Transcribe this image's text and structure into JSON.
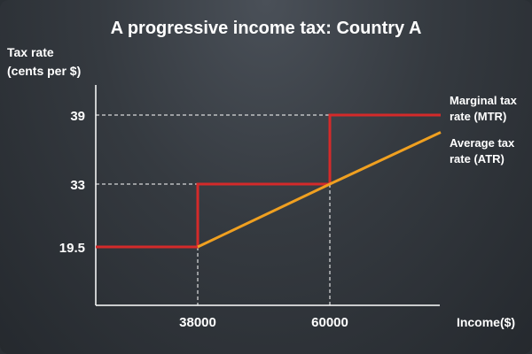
{
  "chart_data": {
    "type": "line",
    "title": "A progressive income tax: Country A",
    "ylabel_line1": "Tax rate",
    "ylabel_line2": "(cents per $)",
    "xlabel": "Income($)",
    "x_ticks": [
      "38000",
      "60000"
    ],
    "y_ticks": [
      "19.5",
      "33",
      "39"
    ],
    "xlim": [
      20000,
      86000
    ],
    "ylim": [
      10,
      42
    ],
    "series": [
      {
        "name_line1": "Marginal tax",
        "name_line2": "rate (MTR)",
        "color": "#d42a2a",
        "step": true,
        "points": [
          [
            20000,
            19.5
          ],
          [
            38000,
            19.5
          ],
          [
            38000,
            33
          ],
          [
            60000,
            33
          ],
          [
            60000,
            39
          ],
          [
            84000,
            39
          ]
        ]
      },
      {
        "name_line1": "Average tax",
        "name_line2": "rate (ATR)",
        "color": "#f0a020",
        "step": false,
        "points": [
          [
            38000,
            19.5
          ],
          [
            60000,
            33
          ],
          [
            84000,
            37.5
          ]
        ]
      }
    ],
    "grid": false,
    "guide_lines": "dashed"
  },
  "colors": {
    "background": "#353a40",
    "axis": "#ffffff",
    "mtr": "#d42a2a",
    "atr": "#f0a020"
  }
}
